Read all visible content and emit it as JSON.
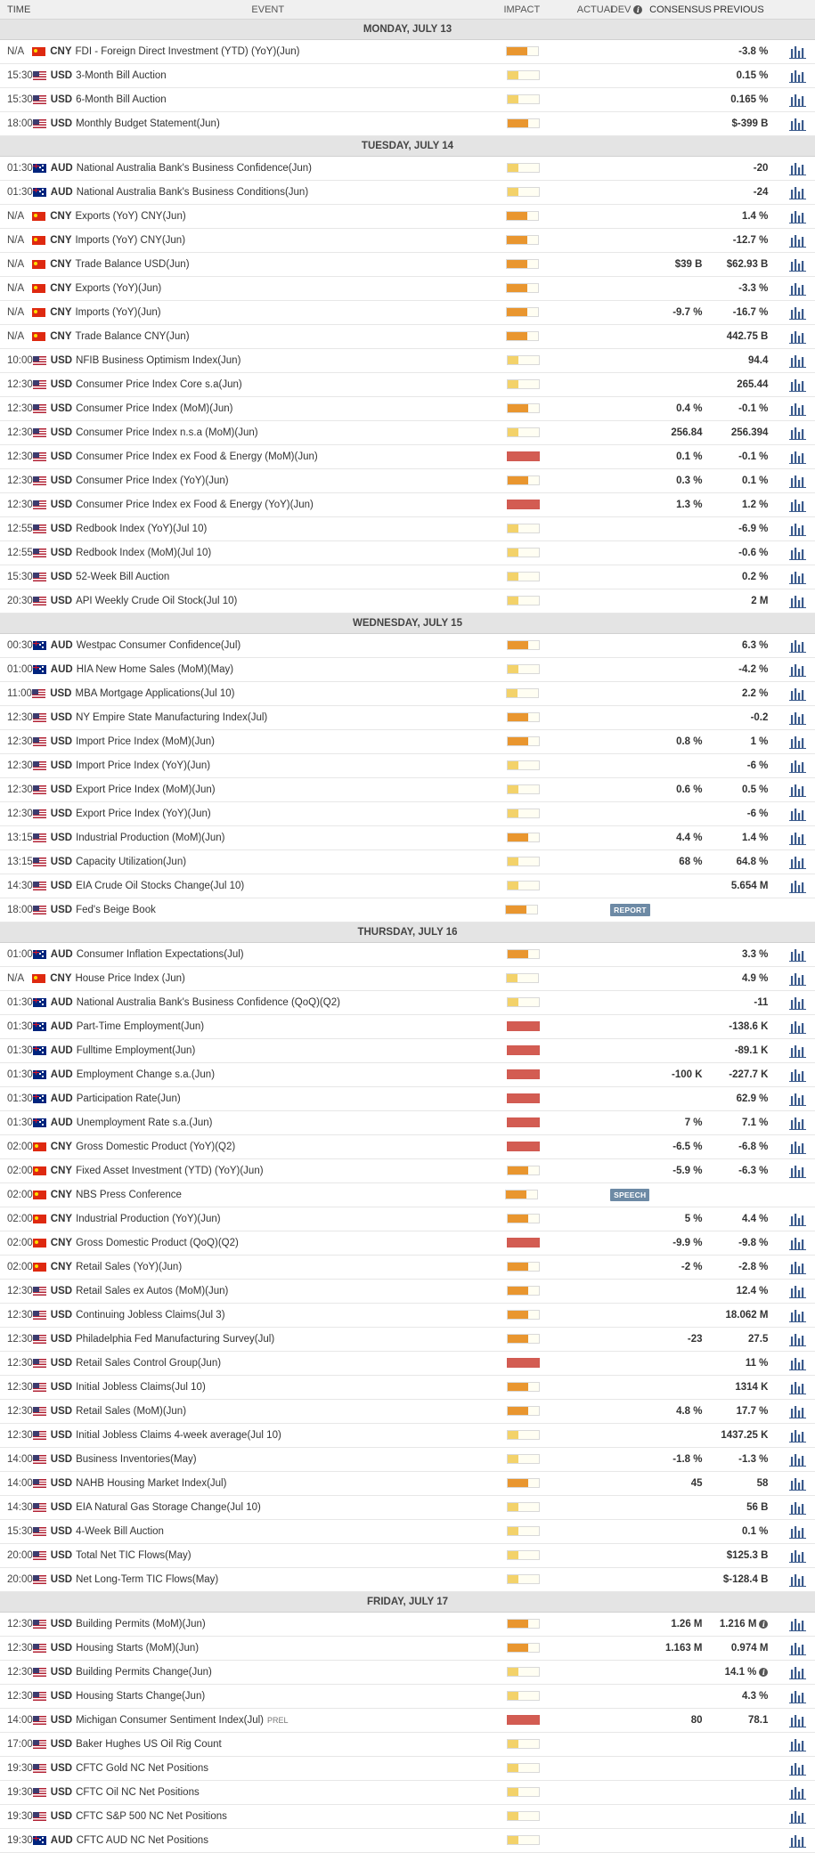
{
  "header": {
    "time": "TIME",
    "event": "EVENT",
    "impact": "IMPACT",
    "actual": "ACTUAL",
    "dev": "DEV",
    "consensus": "CONSENSUS",
    "previous": "PREVIOUS"
  },
  "colors": {
    "low": "#f3d26a",
    "medium": "#e9962f",
    "high": "#d35c52",
    "tag": "#6d8aa5",
    "chart_icon": "#3a5a8c"
  },
  "days": [
    {
      "label": "MONDAY, JULY 13",
      "events": [
        {
          "time": "N/A",
          "flag": "cn",
          "currency": "CNY",
          "name": "FDI - Foreign Direct Investment (YTD) (YoY)(Jun)",
          "impact": "medium",
          "consensus": "",
          "previous": "-3.8 %"
        },
        {
          "time": "15:30",
          "flag": "us",
          "currency": "USD",
          "name": "3-Month Bill Auction",
          "impact": "low",
          "consensus": "",
          "previous": "0.15 %"
        },
        {
          "time": "15:30",
          "flag": "us",
          "currency": "USD",
          "name": "6-Month Bill Auction",
          "impact": "low",
          "consensus": "",
          "previous": "0.165 %"
        },
        {
          "time": "18:00",
          "flag": "us",
          "currency": "USD",
          "name": "Monthly Budget Statement(Jun)",
          "impact": "medium",
          "consensus": "",
          "previous": "$-399 B"
        }
      ]
    },
    {
      "label": "TUESDAY, JULY 14",
      "events": [
        {
          "time": "01:30",
          "flag": "au",
          "currency": "AUD",
          "name": "National Australia Bank's Business Confidence(Jun)",
          "impact": "low",
          "consensus": "",
          "previous": "-20"
        },
        {
          "time": "01:30",
          "flag": "au",
          "currency": "AUD",
          "name": "National Australia Bank's Business Conditions(Jun)",
          "impact": "low",
          "consensus": "",
          "previous": "-24"
        },
        {
          "time": "N/A",
          "flag": "cn",
          "currency": "CNY",
          "name": "Exports (YoY) CNY(Jun)",
          "impact": "medium",
          "consensus": "",
          "previous": "1.4 %"
        },
        {
          "time": "N/A",
          "flag": "cn",
          "currency": "CNY",
          "name": "Imports (YoY) CNY(Jun)",
          "impact": "medium",
          "consensus": "",
          "previous": "-12.7 %"
        },
        {
          "time": "N/A",
          "flag": "cn",
          "currency": "CNY",
          "name": "Trade Balance USD(Jun)",
          "impact": "medium",
          "consensus": "$39 B",
          "previous": "$62.93 B"
        },
        {
          "time": "N/A",
          "flag": "cn",
          "currency": "CNY",
          "name": "Exports (YoY)(Jun)",
          "impact": "medium",
          "consensus": "",
          "previous": "-3.3 %"
        },
        {
          "time": "N/A",
          "flag": "cn",
          "currency": "CNY",
          "name": "Imports (YoY)(Jun)",
          "impact": "medium",
          "consensus": "-9.7 %",
          "previous": "-16.7 %"
        },
        {
          "time": "N/A",
          "flag": "cn",
          "currency": "CNY",
          "name": "Trade Balance CNY(Jun)",
          "impact": "medium",
          "consensus": "",
          "previous": "442.75 B"
        },
        {
          "time": "10:00",
          "flag": "us",
          "currency": "USD",
          "name": "NFIB Business Optimism Index(Jun)",
          "impact": "low",
          "consensus": "",
          "previous": "94.4"
        },
        {
          "time": "12:30",
          "flag": "us",
          "currency": "USD",
          "name": "Consumer Price Index Core s.a(Jun)",
          "impact": "low",
          "consensus": "",
          "previous": "265.44"
        },
        {
          "time": "12:30",
          "flag": "us",
          "currency": "USD",
          "name": "Consumer Price Index (MoM)(Jun)",
          "impact": "medium",
          "consensus": "0.4 %",
          "previous": "-0.1 %"
        },
        {
          "time": "12:30",
          "flag": "us",
          "currency": "USD",
          "name": "Consumer Price Index n.s.a (MoM)(Jun)",
          "impact": "low",
          "consensus": "256.84",
          "previous": "256.394"
        },
        {
          "time": "12:30",
          "flag": "us",
          "currency": "USD",
          "name": "Consumer Price Index ex Food & Energy (MoM)(Jun)",
          "impact": "high",
          "consensus": "0.1 %",
          "previous": "-0.1 %"
        },
        {
          "time": "12:30",
          "flag": "us",
          "currency": "USD",
          "name": "Consumer Price Index (YoY)(Jun)",
          "impact": "medium",
          "consensus": "0.3 %",
          "previous": "0.1 %"
        },
        {
          "time": "12:30",
          "flag": "us",
          "currency": "USD",
          "name": "Consumer Price Index ex Food & Energy (YoY)(Jun)",
          "impact": "high",
          "consensus": "1.3 %",
          "previous": "1.2 %"
        },
        {
          "time": "12:55",
          "flag": "us",
          "currency": "USD",
          "name": "Redbook Index (YoY)(Jul 10)",
          "impact": "low",
          "consensus": "",
          "previous": "-6.9 %"
        },
        {
          "time": "12:55",
          "flag": "us",
          "currency": "USD",
          "name": "Redbook Index (MoM)(Jul 10)",
          "impact": "low",
          "consensus": "",
          "previous": "-0.6 %"
        },
        {
          "time": "15:30",
          "flag": "us",
          "currency": "USD",
          "name": "52-Week Bill Auction",
          "impact": "low",
          "consensus": "",
          "previous": "0.2 %"
        },
        {
          "time": "20:30",
          "flag": "us",
          "currency": "USD",
          "name": "API Weekly Crude Oil Stock(Jul 10)",
          "impact": "low",
          "consensus": "",
          "previous": "2 M"
        }
      ]
    },
    {
      "label": "WEDNESDAY, JULY 15",
      "events": [
        {
          "time": "00:30",
          "flag": "au",
          "currency": "AUD",
          "name": "Westpac Consumer Confidence(Jul)",
          "impact": "medium",
          "consensus": "",
          "previous": "6.3 %"
        },
        {
          "time": "01:00",
          "flag": "au",
          "currency": "AUD",
          "name": "HIA New Home Sales (MoM)(May)",
          "impact": "low",
          "consensus": "",
          "previous": "-4.2 %"
        },
        {
          "time": "11:00",
          "flag": "us",
          "currency": "USD",
          "name": "MBA Mortgage Applications(Jul 10)",
          "impact": "low",
          "consensus": "",
          "previous": "2.2 %"
        },
        {
          "time": "12:30",
          "flag": "us",
          "currency": "USD",
          "name": "NY Empire State Manufacturing Index(Jul)",
          "impact": "medium",
          "consensus": "",
          "previous": "-0.2"
        },
        {
          "time": "12:30",
          "flag": "us",
          "currency": "USD",
          "name": "Import Price Index (MoM)(Jun)",
          "impact": "medium",
          "consensus": "0.8 %",
          "previous": "1 %"
        },
        {
          "time": "12:30",
          "flag": "us",
          "currency": "USD",
          "name": "Import Price Index (YoY)(Jun)",
          "impact": "low",
          "consensus": "",
          "previous": "-6 %"
        },
        {
          "time": "12:30",
          "flag": "us",
          "currency": "USD",
          "name": "Export Price Index (MoM)(Jun)",
          "impact": "low",
          "consensus": "0.6 %",
          "previous": "0.5 %"
        },
        {
          "time": "12:30",
          "flag": "us",
          "currency": "USD",
          "name": "Export Price Index (YoY)(Jun)",
          "impact": "low",
          "consensus": "",
          "previous": "-6 %"
        },
        {
          "time": "13:15",
          "flag": "us",
          "currency": "USD",
          "name": "Industrial Production (MoM)(Jun)",
          "impact": "medium",
          "consensus": "4.4 %",
          "previous": "1.4 %"
        },
        {
          "time": "13:15",
          "flag": "us",
          "currency": "USD",
          "name": "Capacity Utilization(Jun)",
          "impact": "low",
          "consensus": "68 %",
          "previous": "64.8 %"
        },
        {
          "time": "14:30",
          "flag": "us",
          "currency": "USD",
          "name": "EIA Crude Oil Stocks Change(Jul 10)",
          "impact": "low",
          "consensus": "",
          "previous": "5.654 M"
        },
        {
          "time": "18:00",
          "flag": "us",
          "currency": "USD",
          "name": "Fed's Beige Book",
          "impact": "medium",
          "tag": "REPORT",
          "consensus": "",
          "previous": "",
          "nochart": true
        }
      ]
    },
    {
      "label": "THURSDAY, JULY 16",
      "events": [
        {
          "time": "01:00",
          "flag": "au",
          "currency": "AUD",
          "name": "Consumer Inflation Expectations(Jul)",
          "impact": "medium",
          "consensus": "",
          "previous": "3.3 %"
        },
        {
          "time": "N/A",
          "flag": "cn",
          "currency": "CNY",
          "name": "House Price Index (Jun)",
          "impact": "low",
          "consensus": "",
          "previous": "4.9 %"
        },
        {
          "time": "01:30",
          "flag": "au",
          "currency": "AUD",
          "name": "National Australia Bank's Business Confidence (QoQ)(Q2)",
          "impact": "low",
          "consensus": "",
          "previous": "-11"
        },
        {
          "time": "01:30",
          "flag": "au",
          "currency": "AUD",
          "name": "Part-Time Employment(Jun)",
          "impact": "high",
          "consensus": "",
          "previous": "-138.6 K"
        },
        {
          "time": "01:30",
          "flag": "au",
          "currency": "AUD",
          "name": "Fulltime Employment(Jun)",
          "impact": "high",
          "consensus": "",
          "previous": "-89.1 K"
        },
        {
          "time": "01:30",
          "flag": "au",
          "currency": "AUD",
          "name": "Employment Change s.a.(Jun)",
          "impact": "high",
          "consensus": "-100 K",
          "previous": "-227.7 K"
        },
        {
          "time": "01:30",
          "flag": "au",
          "currency": "AUD",
          "name": "Participation Rate(Jun)",
          "impact": "high",
          "consensus": "",
          "previous": "62.9 %"
        },
        {
          "time": "01:30",
          "flag": "au",
          "currency": "AUD",
          "name": "Unemployment Rate s.a.(Jun)",
          "impact": "high",
          "consensus": "7 %",
          "previous": "7.1 %"
        },
        {
          "time": "02:00",
          "flag": "cn",
          "currency": "CNY",
          "name": "Gross Domestic Product (YoY)(Q2)",
          "impact": "high",
          "consensus": "-6.5 %",
          "previous": "-6.8 %"
        },
        {
          "time": "02:00",
          "flag": "cn",
          "currency": "CNY",
          "name": "Fixed Asset Investment (YTD) (YoY)(Jun)",
          "impact": "medium",
          "consensus": "-5.9 %",
          "previous": "-6.3 %"
        },
        {
          "time": "02:00",
          "flag": "cn",
          "currency": "CNY",
          "name": "NBS Press Conference",
          "impact": "medium",
          "tag": "SPEECH",
          "consensus": "",
          "previous": "",
          "nochart": true
        },
        {
          "time": "02:00",
          "flag": "cn",
          "currency": "CNY",
          "name": "Industrial Production (YoY)(Jun)",
          "impact": "medium",
          "consensus": "5 %",
          "previous": "4.4 %"
        },
        {
          "time": "02:00",
          "flag": "cn",
          "currency": "CNY",
          "name": "Gross Domestic Product (QoQ)(Q2)",
          "impact": "high",
          "consensus": "-9.9 %",
          "previous": "-9.8 %"
        },
        {
          "time": "02:00",
          "flag": "cn",
          "currency": "CNY",
          "name": "Retail Sales (YoY)(Jun)",
          "impact": "medium",
          "consensus": "-2 %",
          "previous": "-2.8 %"
        },
        {
          "time": "12:30",
          "flag": "us",
          "currency": "USD",
          "name": "Retail Sales ex Autos (MoM)(Jun)",
          "impact": "medium",
          "consensus": "",
          "previous": "12.4 %"
        },
        {
          "time": "12:30",
          "flag": "us",
          "currency": "USD",
          "name": "Continuing Jobless Claims(Jul 3)",
          "impact": "medium",
          "consensus": "",
          "previous": "18.062 M"
        },
        {
          "time": "12:30",
          "flag": "us",
          "currency": "USD",
          "name": "Philadelphia Fed Manufacturing Survey(Jul)",
          "impact": "medium",
          "consensus": "-23",
          "previous": "27.5"
        },
        {
          "time": "12:30",
          "flag": "us",
          "currency": "USD",
          "name": "Retail Sales Control Group(Jun)",
          "impact": "high",
          "consensus": "",
          "previous": "11 %"
        },
        {
          "time": "12:30",
          "flag": "us",
          "currency": "USD",
          "name": "Initial Jobless Claims(Jul 10)",
          "impact": "medium",
          "consensus": "",
          "previous": "1314 K"
        },
        {
          "time": "12:30",
          "flag": "us",
          "currency": "USD",
          "name": "Retail Sales (MoM)(Jun)",
          "impact": "medium",
          "consensus": "4.8 %",
          "previous": "17.7 %"
        },
        {
          "time": "12:30",
          "flag": "us",
          "currency": "USD",
          "name": "Initial Jobless Claims 4-week average(Jul 10)",
          "impact": "low",
          "consensus": "",
          "previous": "1437.25 K"
        },
        {
          "time": "14:00",
          "flag": "us",
          "currency": "USD",
          "name": "Business Inventories(May)",
          "impact": "low",
          "consensus": "-1.8 %",
          "previous": "-1.3 %"
        },
        {
          "time": "14:00",
          "flag": "us",
          "currency": "USD",
          "name": "NAHB Housing Market Index(Jul)",
          "impact": "medium",
          "consensus": "45",
          "previous": "58"
        },
        {
          "time": "14:30",
          "flag": "us",
          "currency": "USD",
          "name": "EIA Natural Gas Storage Change(Jul 10)",
          "impact": "low",
          "consensus": "",
          "previous": "56 B"
        },
        {
          "time": "15:30",
          "flag": "us",
          "currency": "USD",
          "name": "4-Week Bill Auction",
          "impact": "low",
          "consensus": "",
          "previous": "0.1 %"
        },
        {
          "time": "20:00",
          "flag": "us",
          "currency": "USD",
          "name": "Total Net TIC Flows(May)",
          "impact": "low",
          "consensus": "",
          "previous": "$125.3 B"
        },
        {
          "time": "20:00",
          "flag": "us",
          "currency": "USD",
          "name": "Net Long-Term TIC Flows(May)",
          "impact": "low",
          "consensus": "",
          "previous": "$-128.4 B"
        }
      ]
    },
    {
      "label": "FRIDAY, JULY 17",
      "events": [
        {
          "time": "12:30",
          "flag": "us",
          "currency": "USD",
          "name": "Building Permits (MoM)(Jun)",
          "impact": "medium",
          "consensus": "1.26 M",
          "previous": "1.216 M",
          "info": true
        },
        {
          "time": "12:30",
          "flag": "us",
          "currency": "USD",
          "name": "Housing Starts (MoM)(Jun)",
          "impact": "medium",
          "consensus": "1.163 M",
          "previous": "0.974 M"
        },
        {
          "time": "12:30",
          "flag": "us",
          "currency": "USD",
          "name": "Building Permits Change(Jun)",
          "impact": "low",
          "consensus": "",
          "previous": "14.1 %",
          "info": true
        },
        {
          "time": "12:30",
          "flag": "us",
          "currency": "USD",
          "name": "Housing Starts Change(Jun)",
          "impact": "low",
          "consensus": "",
          "previous": "4.3 %"
        },
        {
          "time": "14:00",
          "flag": "us",
          "currency": "USD",
          "name": "Michigan Consumer Sentiment Index(Jul)",
          "prel": "PREL",
          "impact": "high",
          "consensus": "80",
          "previous": "78.1"
        },
        {
          "time": "17:00",
          "flag": "us",
          "currency": "USD",
          "name": "Baker Hughes US Oil Rig Count",
          "impact": "low",
          "consensus": "",
          "previous": ""
        },
        {
          "time": "19:30",
          "flag": "us",
          "currency": "USD",
          "name": "CFTC Gold NC Net Positions",
          "impact": "low",
          "consensus": "",
          "previous": ""
        },
        {
          "time": "19:30",
          "flag": "us",
          "currency": "USD",
          "name": "CFTC Oil NC Net Positions",
          "impact": "low",
          "consensus": "",
          "previous": ""
        },
        {
          "time": "19:30",
          "flag": "us",
          "currency": "USD",
          "name": "CFTC S&P 500 NC Net Positions",
          "impact": "low",
          "consensus": "",
          "previous": ""
        },
        {
          "time": "19:30",
          "flag": "au",
          "currency": "AUD",
          "name": "CFTC AUD NC Net Positions",
          "impact": "low",
          "consensus": "",
          "previous": ""
        }
      ]
    }
  ]
}
